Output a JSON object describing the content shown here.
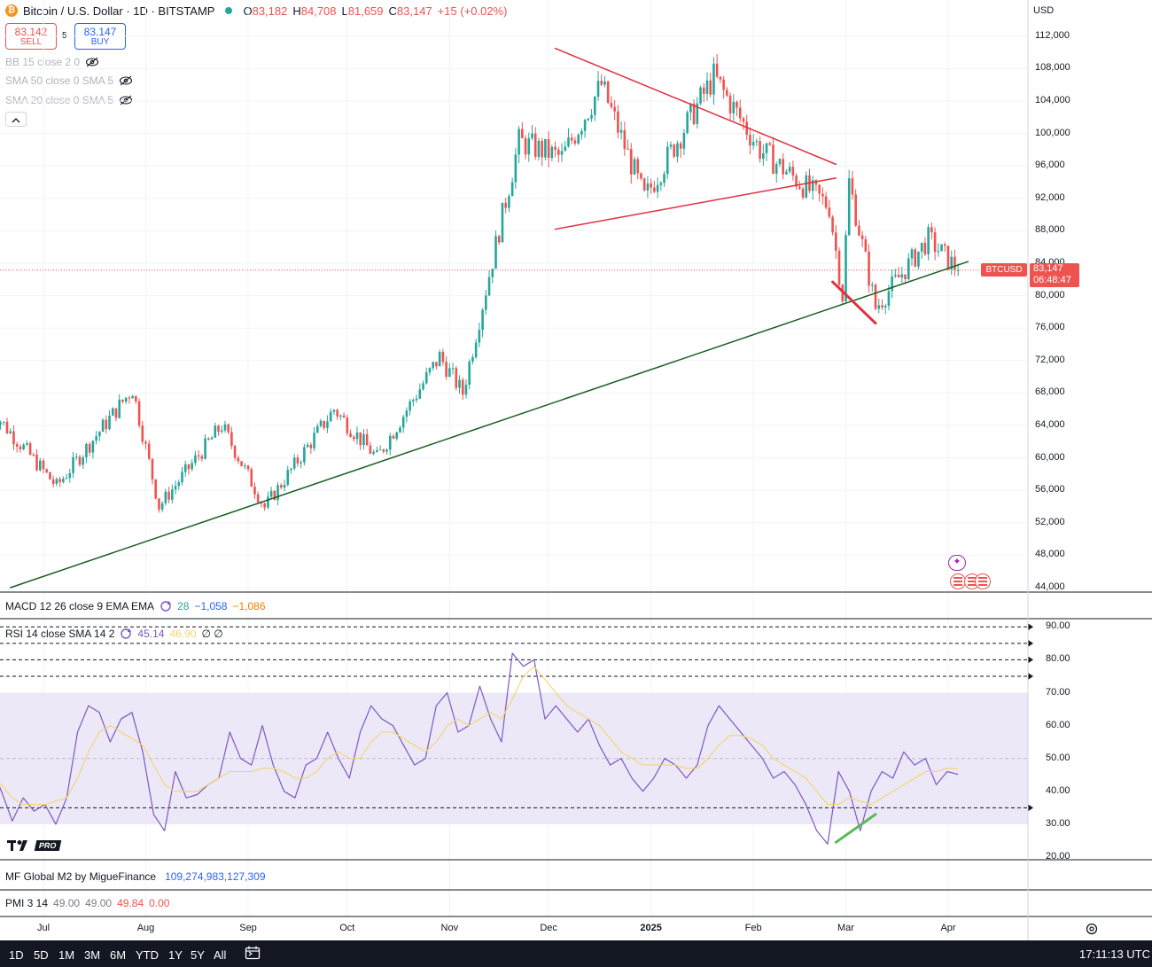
{
  "header": {
    "symbol_title": "Bitcoin / U.S. Dollar · 1D · BITSTAMP",
    "ohlc": {
      "o_label": "O",
      "o_value": "83,182",
      "h_label": "H",
      "h_value": "84,708",
      "l_label": "L",
      "l_value": "81,659",
      "c_label": "C",
      "c_value": "83,147",
      "change": "+15 (+0.02%)"
    },
    "sell": {
      "price": "83,142",
      "label": "SELL"
    },
    "spread": "5",
    "buy": {
      "price": "83,147",
      "label": "BUY"
    },
    "indicators": [
      {
        "label": "BB 15 close 2 0",
        "icon": "eye-off-icon"
      },
      {
        "label": "SMA 50 close 0 SMA 5",
        "icon": "eye-off-icon"
      },
      {
        "label": "SMA 20 close 0 SMA 5",
        "icon": "eye-off-icon"
      }
    ],
    "collapse_icon": "chevron-up-icon"
  },
  "price_axis": {
    "currency": "USD",
    "ticks": [
      "112,000",
      "108,000",
      "104,000",
      "100,000",
      "96,000",
      "92,000",
      "88,000",
      "84,000",
      "80,000",
      "76,000",
      "72,000",
      "68,000",
      "64,000",
      "60,000",
      "56,000",
      "52,000",
      "48,000",
      "44,000"
    ],
    "last_price_tag": {
      "symbol": "BTCUSD",
      "price": "83,147",
      "countdown": "06:48:47"
    }
  },
  "panes": {
    "macd": {
      "label": "MACD 12 26 close 9 EMA EMA",
      "v1": "28",
      "v2": "−1,058",
      "v3": "−1,086"
    },
    "rsi": {
      "label": "RSI 14 close SMA 14 2",
      "value": "45.14",
      "sma_value": "46.90",
      "extra": "∅ ∅",
      "ticks": [
        "90.00",
        "80.00",
        "70.00",
        "60.00",
        "50.00",
        "40.00",
        "30.00",
        "20.00"
      ]
    },
    "m2": {
      "label": "MF Global M2 by MigueFinance",
      "value": "109,274,983,127,309"
    },
    "pmi": {
      "label": "PMI 3 14",
      "v1": "49.00",
      "v2": "49.00",
      "v3": "49.84",
      "v4": "0.00"
    }
  },
  "time_axis": {
    "labels": [
      "Jul",
      "Aug",
      "Sep",
      "Oct",
      "Nov",
      "Dec",
      "2025",
      "Feb",
      "Mar",
      "Apr"
    ]
  },
  "bottom_bar": {
    "timeframes": [
      "1D",
      "5D",
      "1M",
      "3M",
      "6M",
      "YTD",
      "1Y",
      "5Y",
      "All"
    ],
    "calendar_icon": "calendar-range-icon",
    "clock": "17:11:13 UTC",
    "settings_icon": "gear-icon"
  },
  "logo": {
    "text": "PRO"
  },
  "colors": {
    "up": "#26a69a",
    "down": "#ef5350",
    "pattern_lines": "#e0303f",
    "trend_line": "#1b5e20",
    "rsi_line": "#7e57c2",
    "rsi_sma": "#f3d56b",
    "rsi_band": "#ece8f7",
    "divergence": "#5cb85c",
    "macd_blue": "#2962ff",
    "macd_orange": "#f57c00",
    "accent_blue": "#2962ff"
  },
  "chart_data": [
    {
      "type": "candlestick",
      "title": "Bitcoin / U.S. Dollar · 1D · BITSTAMP",
      "xlabel": "",
      "ylabel": "",
      "x_ticks": [
        "Jul",
        "Aug",
        "Sep",
        "Oct",
        "Nov",
        "Dec",
        "2025",
        "Feb",
        "Mar",
        "Apr"
      ],
      "ylim": [
        44000,
        114000
      ],
      "y_ticks": [
        112000,
        108000,
        104000,
        100000,
        96000,
        92000,
        88000,
        84000,
        80000,
        76000,
        72000,
        68000,
        64000,
        60000,
        56000,
        52000,
        48000,
        44000
      ],
      "last_price": 83147,
      "grid": true,
      "approx_close_path": [
        {
          "date": "2024-06-15",
          "close": 66000
        },
        {
          "date": "2024-07-05",
          "close": 56500
        },
        {
          "date": "2024-07-28",
          "close": 68500
        },
        {
          "date": "2024-08-05",
          "close": 54000
        },
        {
          "date": "2024-08-24",
          "close": 64000
        },
        {
          "date": "2024-09-06",
          "close": 53900
        },
        {
          "date": "2024-09-27",
          "close": 66000
        },
        {
          "date": "2024-10-10",
          "close": 60000
        },
        {
          "date": "2024-10-29",
          "close": 72500
        },
        {
          "date": "2024-11-05",
          "close": 68000
        },
        {
          "date": "2024-11-22",
          "close": 99000
        },
        {
          "date": "2024-12-05",
          "close": 97000
        },
        {
          "date": "2024-12-17",
          "close": 106000
        },
        {
          "date": "2024-12-30",
          "close": 92000
        },
        {
          "date": "2025-01-20",
          "close": 107000
        },
        {
          "date": "2025-02-03",
          "close": 98000
        },
        {
          "date": "2025-02-24",
          "close": 91000
        },
        {
          "date": "2025-02-28",
          "close": 80000
        },
        {
          "date": "2025-03-02",
          "close": 94000
        },
        {
          "date": "2025-03-10",
          "close": 78500
        },
        {
          "date": "2025-03-26",
          "close": 87000
        },
        {
          "date": "2025-04-04",
          "close": 83147
        }
      ],
      "drawings": [
        {
          "name": "descending-resistance",
          "from": {
            "date": "2024-12-03",
            "price": 110500
          },
          "to": {
            "date": "2025-02-26",
            "price": 96200
          }
        },
        {
          "name": "ascending-support-short",
          "from": {
            "date": "2024-12-03",
            "price": 88200
          },
          "to": {
            "date": "2025-02-26",
            "price": 94500
          }
        },
        {
          "name": "long-term-support",
          "from": {
            "date": "2024-06-21",
            "price": 44000
          },
          "to": {
            "date": "2025-04-07",
            "price": 84200
          }
        },
        {
          "name": "breakdown-leg",
          "from": {
            "date": "2025-02-25",
            "price": 81700
          },
          "to": {
            "date": "2025-03-10",
            "price": 76600
          }
        }
      ]
    },
    {
      "type": "line",
      "title": "RSI 14 close SMA 14 2",
      "ylim": [
        18,
        92
      ],
      "y_ticks": [
        90,
        80,
        70,
        60,
        50,
        40,
        30,
        20
      ],
      "levels": [
        90,
        85,
        80,
        75,
        35
      ],
      "band": [
        30,
        70
      ],
      "midline": 50,
      "series": [
        {
          "name": "RSI",
          "last": 45.14,
          "approx_values": [
            48,
            40,
            31,
            38,
            34,
            36,
            30,
            38,
            58,
            66,
            64,
            55,
            62,
            64,
            52,
            33,
            28,
            46,
            38,
            39,
            42,
            44,
            58,
            50,
            48,
            60,
            48,
            40,
            38,
            48,
            50,
            58,
            50,
            44,
            58,
            66,
            62,
            60,
            54,
            48,
            50,
            66,
            70,
            58,
            60,
            72,
            62,
            55,
            82,
            78,
            80,
            62,
            66,
            62,
            58,
            62,
            54,
            48,
            50,
            44,
            40,
            44,
            50,
            48,
            44,
            48,
            60,
            66,
            62,
            58,
            54,
            50,
            44,
            46,
            42,
            36,
            28,
            24,
            46,
            40,
            28,
            40,
            46,
            44,
            52,
            48,
            50,
            42,
            46,
            45.14
          ]
        },
        {
          "name": "SMA",
          "last": 46.9,
          "approx_values": [
            44,
            42,
            38,
            36,
            36,
            36,
            37,
            38,
            44,
            52,
            58,
            60,
            58,
            56,
            54,
            48,
            42,
            40,
            40,
            40,
            42,
            44,
            46,
            46,
            46,
            47,
            47,
            46,
            44,
            44,
            46,
            50,
            52,
            50,
            50,
            55,
            58,
            58,
            56,
            54,
            52,
            55,
            60,
            62,
            60,
            62,
            64,
            62,
            68,
            75,
            78,
            74,
            70,
            66,
            64,
            62,
            60,
            56,
            52,
            50,
            48,
            48,
            48,
            48,
            47,
            47,
            50,
            54,
            57,
            57,
            56,
            54,
            50,
            48,
            46,
            44,
            40,
            36,
            36,
            38,
            37,
            36,
            38,
            40,
            42,
            44,
            46,
            46,
            47,
            46.9
          ]
        }
      ],
      "divergence_line": {
        "from": {
          "date": "2025-02-26",
          "rsi": 24.5
        },
        "to": {
          "date": "2025-03-10",
          "rsi": 33
        }
      }
    }
  ]
}
